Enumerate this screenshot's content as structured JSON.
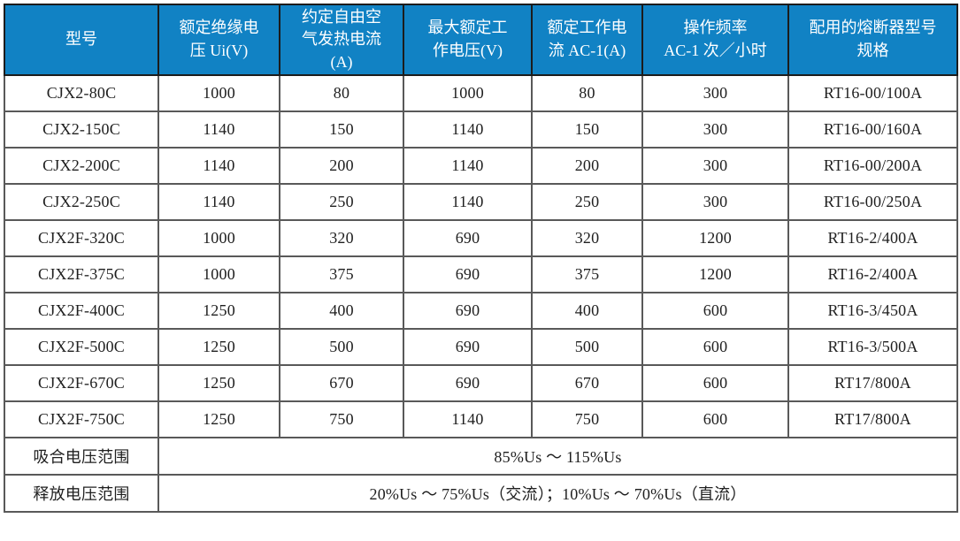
{
  "colors": {
    "header_bg": "#1182c4",
    "header_text": "#ffffff",
    "body_text": "#1f1f1f",
    "grid_line": "#595959",
    "outer_line": "#1c1c1c"
  },
  "table": {
    "columns": [
      {
        "label": "型号"
      },
      {
        "label": "额定绝缘电\n压 Ui(V)"
      },
      {
        "label": "约定自由空\n气发热电流\n(A)"
      },
      {
        "label": "最大额定工\n作电压(V)"
      },
      {
        "label": "额定工作电\n流 AC-1(A)"
      },
      {
        "label": "操作频率\nAC-1 次／小时"
      },
      {
        "label": "配用的熔断器型号\n规格"
      }
    ],
    "rows": [
      [
        "CJX2-80C",
        "1000",
        "80",
        "1000",
        "80",
        "300",
        "RT16-00/100A"
      ],
      [
        "CJX2-150C",
        "1140",
        "150",
        "1140",
        "150",
        "300",
        "RT16-00/160A"
      ],
      [
        "CJX2-200C",
        "1140",
        "200",
        "1140",
        "200",
        "300",
        "RT16-00/200A"
      ],
      [
        "CJX2-250C",
        "1140",
        "250",
        "1140",
        "250",
        "300",
        "RT16-00/250A"
      ],
      [
        "CJX2F-320C",
        "1000",
        "320",
        "690",
        "320",
        "1200",
        "RT16-2/400A"
      ],
      [
        "CJX2F-375C",
        "1000",
        "375",
        "690",
        "375",
        "1200",
        "RT16-2/400A"
      ],
      [
        "CJX2F-400C",
        "1250",
        "400",
        "690",
        "400",
        "600",
        "RT16-3/450A"
      ],
      [
        "CJX2F-500C",
        "1250",
        "500",
        "690",
        "500",
        "600",
        "RT16-3/500A"
      ],
      [
        "CJX2F-670C",
        "1250",
        "670",
        "690",
        "670",
        "600",
        "RT17/800A"
      ],
      [
        "CJX2F-750C",
        "1250",
        "750",
        "1140",
        "750",
        "600",
        "RT17/800A"
      ]
    ],
    "footer_rows": [
      {
        "label": "吸合电压范围",
        "value": "85%Us ～ 115%Us"
      },
      {
        "label": "释放电压范围",
        "value": "20%Us ～ 75%Us（交流）；10%Us ～ 70%Us（直流）"
      }
    ]
  }
}
